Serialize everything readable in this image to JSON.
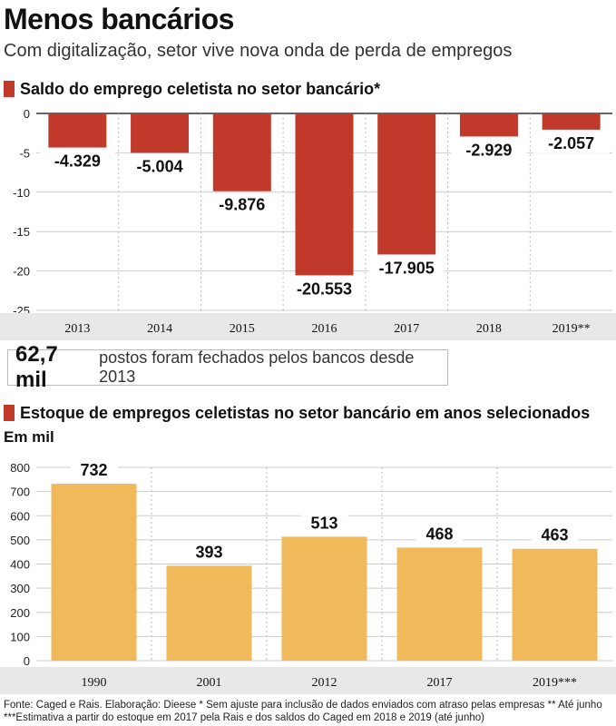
{
  "header": {
    "title": "Menos bancários",
    "subtitle": "Com digitalização, setor vive nova onda de perda de empregos"
  },
  "highlight": {
    "value": "62,7 mil",
    "text": "postos foram fechados pelos bancos desde 2013"
  },
  "footnotes": {
    "line1": "Fonte: Caged e Rais. Elaboração: Dieese * Sem ajuste para inclusão de dados enviados com atraso pelas empresas ** Até junho",
    "line2": "***Estimativa a partir do estoque em 2017 pela Rais e dos saldos do Caged em 2018 e 2019 (até junho)"
  },
  "colors": {
    "negative_bar": "#c0392b",
    "stock_bar": "#f0b95a",
    "band": "#e8e8e8",
    "marker": "#c0392b"
  },
  "chart_data": [
    {
      "type": "bar",
      "title": "Saldo do emprego celetista no setor bancário*",
      "categories": [
        "2013",
        "2014",
        "2015",
        "2016",
        "2017",
        "2018",
        "2019**"
      ],
      "values": [
        -4.329,
        -5.004,
        -9.876,
        -20.553,
        -17.905,
        -2.929,
        -2.057
      ],
      "value_labels": [
        "-4.329",
        "-5.004",
        "-9.876",
        "-20.553",
        "-17.905",
        "-2.929",
        "-2.057"
      ],
      "yticks": [
        0,
        -5,
        -10,
        -15,
        -20,
        -25
      ],
      "ylim": [
        -25,
        0
      ],
      "xlabel": "",
      "ylabel": ""
    },
    {
      "type": "bar",
      "title": "Estoque de empregos celetistas no setor bancário em anos selecionados",
      "unit": "Em mil",
      "categories": [
        "1990",
        "2001",
        "2012",
        "2017",
        "2019***"
      ],
      "values": [
        732,
        393,
        513,
        468,
        463
      ],
      "value_labels": [
        "732",
        "393",
        "513",
        "468",
        "463"
      ],
      "yticks": [
        0,
        100,
        200,
        300,
        400,
        500,
        600,
        700,
        800
      ],
      "ylim": [
        0,
        800
      ],
      "xlabel": "",
      "ylabel": ""
    }
  ]
}
